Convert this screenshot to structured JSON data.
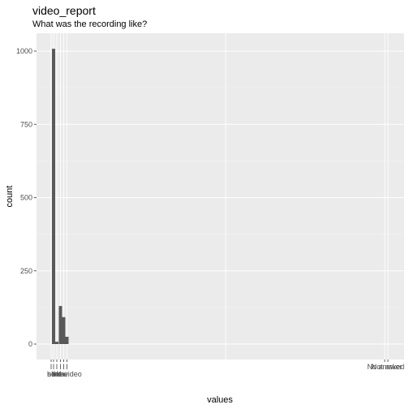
{
  "chart_data": {
    "type": "bar",
    "title": "video_report",
    "subtitle": "What was the recording like?",
    "xlabel": "values",
    "ylabel": "count",
    "ylim": [
      0,
      1075
    ],
    "yticks": [
      0,
      250,
      500,
      750,
      1000
    ],
    "grid": true,
    "bar_color": "#595959",
    "panel_color": "#ebebeb",
    "categories": [
      {
        "label": "I\nbe",
        "value": 0
      },
      {
        "label": "I\nshe",
        "value": 1008
      },
      {
        "label": "I\nint",
        "value": 8
      },
      {
        "label": "I\nfra",
        "value": 130
      },
      {
        "label": "I\nhe",
        "value": 92
      },
      {
        "label": "I\nthe video",
        "value": 25
      },
      {
        "label": "No answer",
        "value": 0
      },
      {
        "label": "Not asked",
        "value": 0
      }
    ]
  }
}
